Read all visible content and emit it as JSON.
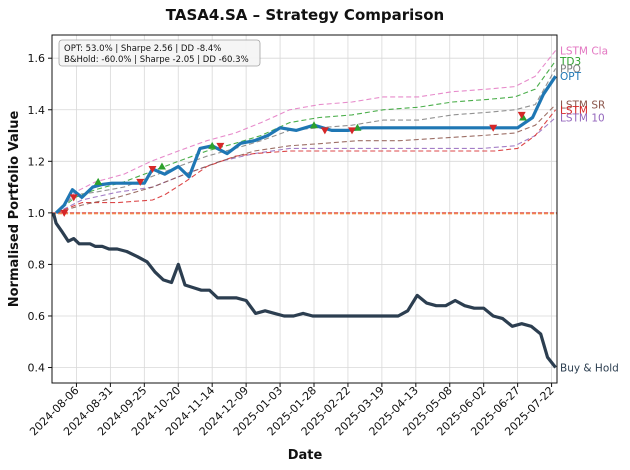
{
  "chart_data": {
    "type": "line",
    "title": "TASA4.SA – Strategy Comparison",
    "xlabel": "Date",
    "ylabel": "Normalised Portfolio Value",
    "ylim": [
      0.34,
      1.69
    ],
    "xlim": [
      "2024-07-19",
      "2025-07-26"
    ],
    "yticks": [
      0.4,
      0.6,
      0.8,
      1.0,
      1.2,
      1.4,
      1.6
    ],
    "ytick_labels": [
      "0.4",
      "0.6",
      "0.8",
      "1.0",
      "1.2",
      "1.4",
      "1.6"
    ],
    "xticks": [
      "2024-08-06",
      "2024-08-31",
      "2024-09-25",
      "2024-10-20",
      "2024-11-14",
      "2024-12-09",
      "2025-01-03",
      "2025-01-28",
      "2025-02-22",
      "2025-03-19",
      "2025-04-13",
      "2025-05-08",
      "2025-06-02",
      "2025-06-27",
      "2025-07-22"
    ],
    "grid": true,
    "stats_box": [
      "OPT: 53.0% | Sharpe 2.56 | DD -8.4%",
      "B&Hold: -60.0% | Sharpe -2.05 | DD -60.3%"
    ],
    "baseline": 1.0,
    "series": [
      {
        "name": "LSTM Cla",
        "color": "#e377c2",
        "style": "dashed",
        "x": [
          "2024-07-22",
          "2024-08-05",
          "2024-08-20",
          "2024-09-10",
          "2024-09-30",
          "2024-10-20",
          "2024-11-10",
          "2024-12-01",
          "2024-12-20",
          "2025-01-10",
          "2025-02-01",
          "2025-02-25",
          "2025-03-20",
          "2025-04-15",
          "2025-05-10",
          "2025-06-05",
          "2025-06-25",
          "2025-07-10",
          "2025-07-25"
        ],
        "values": [
          1.0,
          1.08,
          1.12,
          1.15,
          1.2,
          1.24,
          1.28,
          1.31,
          1.35,
          1.4,
          1.42,
          1.43,
          1.45,
          1.45,
          1.47,
          1.48,
          1.49,
          1.53,
          1.63
        ]
      },
      {
        "name": "TD3",
        "color": "#2ca02c",
        "style": "dashed",
        "x": [
          "2024-07-22",
          "2024-08-05",
          "2024-08-20",
          "2024-09-10",
          "2024-09-30",
          "2024-10-20",
          "2024-11-10",
          "2024-12-01",
          "2024-12-20",
          "2025-01-10",
          "2025-02-01",
          "2025-02-25",
          "2025-03-20",
          "2025-04-15",
          "2025-05-10",
          "2025-06-05",
          "2025-06-25",
          "2025-07-10",
          "2025-07-25"
        ],
        "values": [
          1.0,
          1.06,
          1.09,
          1.12,
          1.16,
          1.2,
          1.24,
          1.27,
          1.3,
          1.35,
          1.37,
          1.38,
          1.4,
          1.41,
          1.43,
          1.44,
          1.45,
          1.48,
          1.59
        ]
      },
      {
        "name": "PPO",
        "color": "#7f7f7f",
        "style": "dashed",
        "x": [
          "2024-07-22",
          "2024-08-05",
          "2024-08-20",
          "2024-09-10",
          "2024-09-30",
          "2024-10-20",
          "2024-11-10",
          "2024-12-01",
          "2024-12-20",
          "2025-01-10",
          "2025-02-01",
          "2025-02-25",
          "2025-03-20",
          "2025-04-15",
          "2025-05-10",
          "2025-06-05",
          "2025-06-25",
          "2025-07-10",
          "2025-07-25"
        ],
        "values": [
          1.0,
          1.07,
          1.08,
          1.1,
          1.14,
          1.18,
          1.22,
          1.25,
          1.28,
          1.32,
          1.33,
          1.34,
          1.36,
          1.36,
          1.38,
          1.39,
          1.4,
          1.42,
          1.56
        ]
      },
      {
        "name": "OPT",
        "color": "#1f77b4",
        "style": "solid",
        "x": [
          "2024-07-22",
          "2024-07-28",
          "2024-08-03",
          "2024-08-10",
          "2024-08-18",
          "2024-08-25",
          "2024-09-01",
          "2024-09-15",
          "2024-09-25",
          "2024-10-01",
          "2024-10-10",
          "2024-10-20",
          "2024-10-28",
          "2024-11-05",
          "2024-11-14",
          "2024-11-25",
          "2024-12-05",
          "2024-12-15",
          "2024-12-25",
          "2025-01-03",
          "2025-01-15",
          "2025-01-28",
          "2025-02-10",
          "2025-02-22",
          "2025-03-05",
          "2025-03-19",
          "2025-04-01",
          "2025-04-13",
          "2025-04-25",
          "2025-05-08",
          "2025-05-20",
          "2025-06-02",
          "2025-06-15",
          "2025-06-27",
          "2025-07-08",
          "2025-07-16",
          "2025-07-25"
        ],
        "values": [
          1.0,
          1.03,
          1.09,
          1.06,
          1.1,
          1.11,
          1.115,
          1.115,
          1.115,
          1.17,
          1.15,
          1.18,
          1.14,
          1.25,
          1.26,
          1.23,
          1.27,
          1.28,
          1.3,
          1.33,
          1.32,
          1.34,
          1.32,
          1.32,
          1.33,
          1.33,
          1.33,
          1.33,
          1.33,
          1.33,
          1.33,
          1.33,
          1.33,
          1.33,
          1.37,
          1.46,
          1.53
        ]
      },
      {
        "name": "LSTM SR",
        "color": "#8c564b",
        "style": "dashed",
        "x": [
          "2024-07-22",
          "2024-08-10",
          "2024-09-05",
          "2024-10-01",
          "2024-10-25",
          "2024-11-20",
          "2024-12-15",
          "2025-01-10",
          "2025-02-05",
          "2025-03-01",
          "2025-04-01",
          "2025-05-01",
          "2025-06-01",
          "2025-06-25",
          "2025-07-10",
          "2025-07-25"
        ],
        "values": [
          1.0,
          1.03,
          1.06,
          1.1,
          1.15,
          1.2,
          1.24,
          1.26,
          1.27,
          1.28,
          1.28,
          1.29,
          1.3,
          1.31,
          1.34,
          1.42
        ]
      },
      {
        "name": "LSTM",
        "color": "#d62728",
        "style": "dashed",
        "x": [
          "2024-07-22",
          "2024-08-10",
          "2024-09-05",
          "2024-10-01",
          "2024-10-10",
          "2024-10-25",
          "2024-11-10",
          "2024-12-01",
          "2024-12-15",
          "2025-01-10",
          "2025-02-10",
          "2025-03-10",
          "2025-04-10",
          "2025-05-10",
          "2025-06-10",
          "2025-06-27",
          "2025-07-10",
          "2025-07-25"
        ],
        "values": [
          1.0,
          1.04,
          1.04,
          1.05,
          1.07,
          1.12,
          1.18,
          1.22,
          1.23,
          1.24,
          1.24,
          1.24,
          1.24,
          1.24,
          1.24,
          1.25,
          1.3,
          1.4
        ]
      },
      {
        "name": "LSTM 10",
        "color": "#9467bd",
        "style": "dashed",
        "x": [
          "2024-07-22",
          "2024-08-10",
          "2024-09-05",
          "2024-10-01",
          "2024-10-25",
          "2024-11-20",
          "2024-12-15",
          "2025-01-10",
          "2025-02-05",
          "2025-03-01",
          "2025-04-01",
          "2025-05-01",
          "2025-06-01",
          "2025-06-25",
          "2025-07-10",
          "2025-07-25"
        ],
        "values": [
          1.0,
          1.05,
          1.08,
          1.1,
          1.15,
          1.2,
          1.23,
          1.25,
          1.25,
          1.25,
          1.25,
          1.25,
          1.25,
          1.26,
          1.3,
          1.37
        ]
      },
      {
        "name": "Buy & Hold",
        "color": "#2c3e50",
        "style": "solid",
        "x": [
          "2024-07-20",
          "2024-07-22",
          "2024-07-26",
          "2024-07-31",
          "2024-08-04",
          "2024-08-08",
          "2024-08-12",
          "2024-08-16",
          "2024-08-20",
          "2024-08-25",
          "2024-08-30",
          "2024-09-05",
          "2024-09-12",
          "2024-09-20",
          "2024-09-27",
          "2024-10-03",
          "2024-10-09",
          "2024-10-15",
          "2024-10-20",
          "2024-10-25",
          "2024-10-31",
          "2024-11-06",
          "2024-11-12",
          "2024-11-18",
          "2024-11-25",
          "2024-12-02",
          "2024-12-09",
          "2024-12-16",
          "2024-12-23",
          "2024-12-30",
          "2025-01-06",
          "2025-01-13",
          "2025-01-20",
          "2025-01-27",
          "2025-02-03",
          "2025-02-10",
          "2025-02-17",
          "2025-02-24",
          "2025-03-03",
          "2025-03-10",
          "2025-03-17",
          "2025-03-24",
          "2025-03-31",
          "2025-04-07",
          "2025-04-14",
          "2025-04-21",
          "2025-04-28",
          "2025-05-05",
          "2025-05-12",
          "2025-05-19",
          "2025-05-26",
          "2025-06-02",
          "2025-06-09",
          "2025-06-16",
          "2025-06-23",
          "2025-06-30",
          "2025-07-07",
          "2025-07-14",
          "2025-07-19",
          "2025-07-25"
        ],
        "values": [
          1.0,
          0.96,
          0.93,
          0.89,
          0.9,
          0.88,
          0.88,
          0.88,
          0.87,
          0.87,
          0.86,
          0.86,
          0.85,
          0.83,
          0.81,
          0.77,
          0.74,
          0.73,
          0.8,
          0.72,
          0.71,
          0.7,
          0.7,
          0.67,
          0.67,
          0.67,
          0.66,
          0.61,
          0.62,
          0.61,
          0.6,
          0.6,
          0.61,
          0.6,
          0.6,
          0.6,
          0.6,
          0.6,
          0.6,
          0.6,
          0.6,
          0.6,
          0.6,
          0.62,
          0.68,
          0.65,
          0.64,
          0.64,
          0.66,
          0.64,
          0.63,
          0.63,
          0.6,
          0.59,
          0.56,
          0.57,
          0.56,
          0.53,
          0.44,
          0.4
        ]
      }
    ],
    "buy_markers": {
      "color": "#2ca02c",
      "x": [
        "2024-08-22",
        "2024-10-08",
        "2024-11-14",
        "2025-01-28",
        "2025-03-01",
        "2025-07-01"
      ],
      "y": [
        1.12,
        1.18,
        1.26,
        1.34,
        1.33,
        1.37
      ]
    },
    "sell_markers": {
      "color": "#d62728",
      "x": [
        "2024-07-28",
        "2024-08-04",
        "2024-09-22",
        "2024-10-01",
        "2024-11-20",
        "2025-02-05",
        "2025-02-25",
        "2025-06-09",
        "2025-06-30"
      ],
      "y": [
        1.0,
        1.06,
        1.12,
        1.17,
        1.26,
        1.32,
        1.32,
        1.33,
        1.38
      ]
    }
  }
}
